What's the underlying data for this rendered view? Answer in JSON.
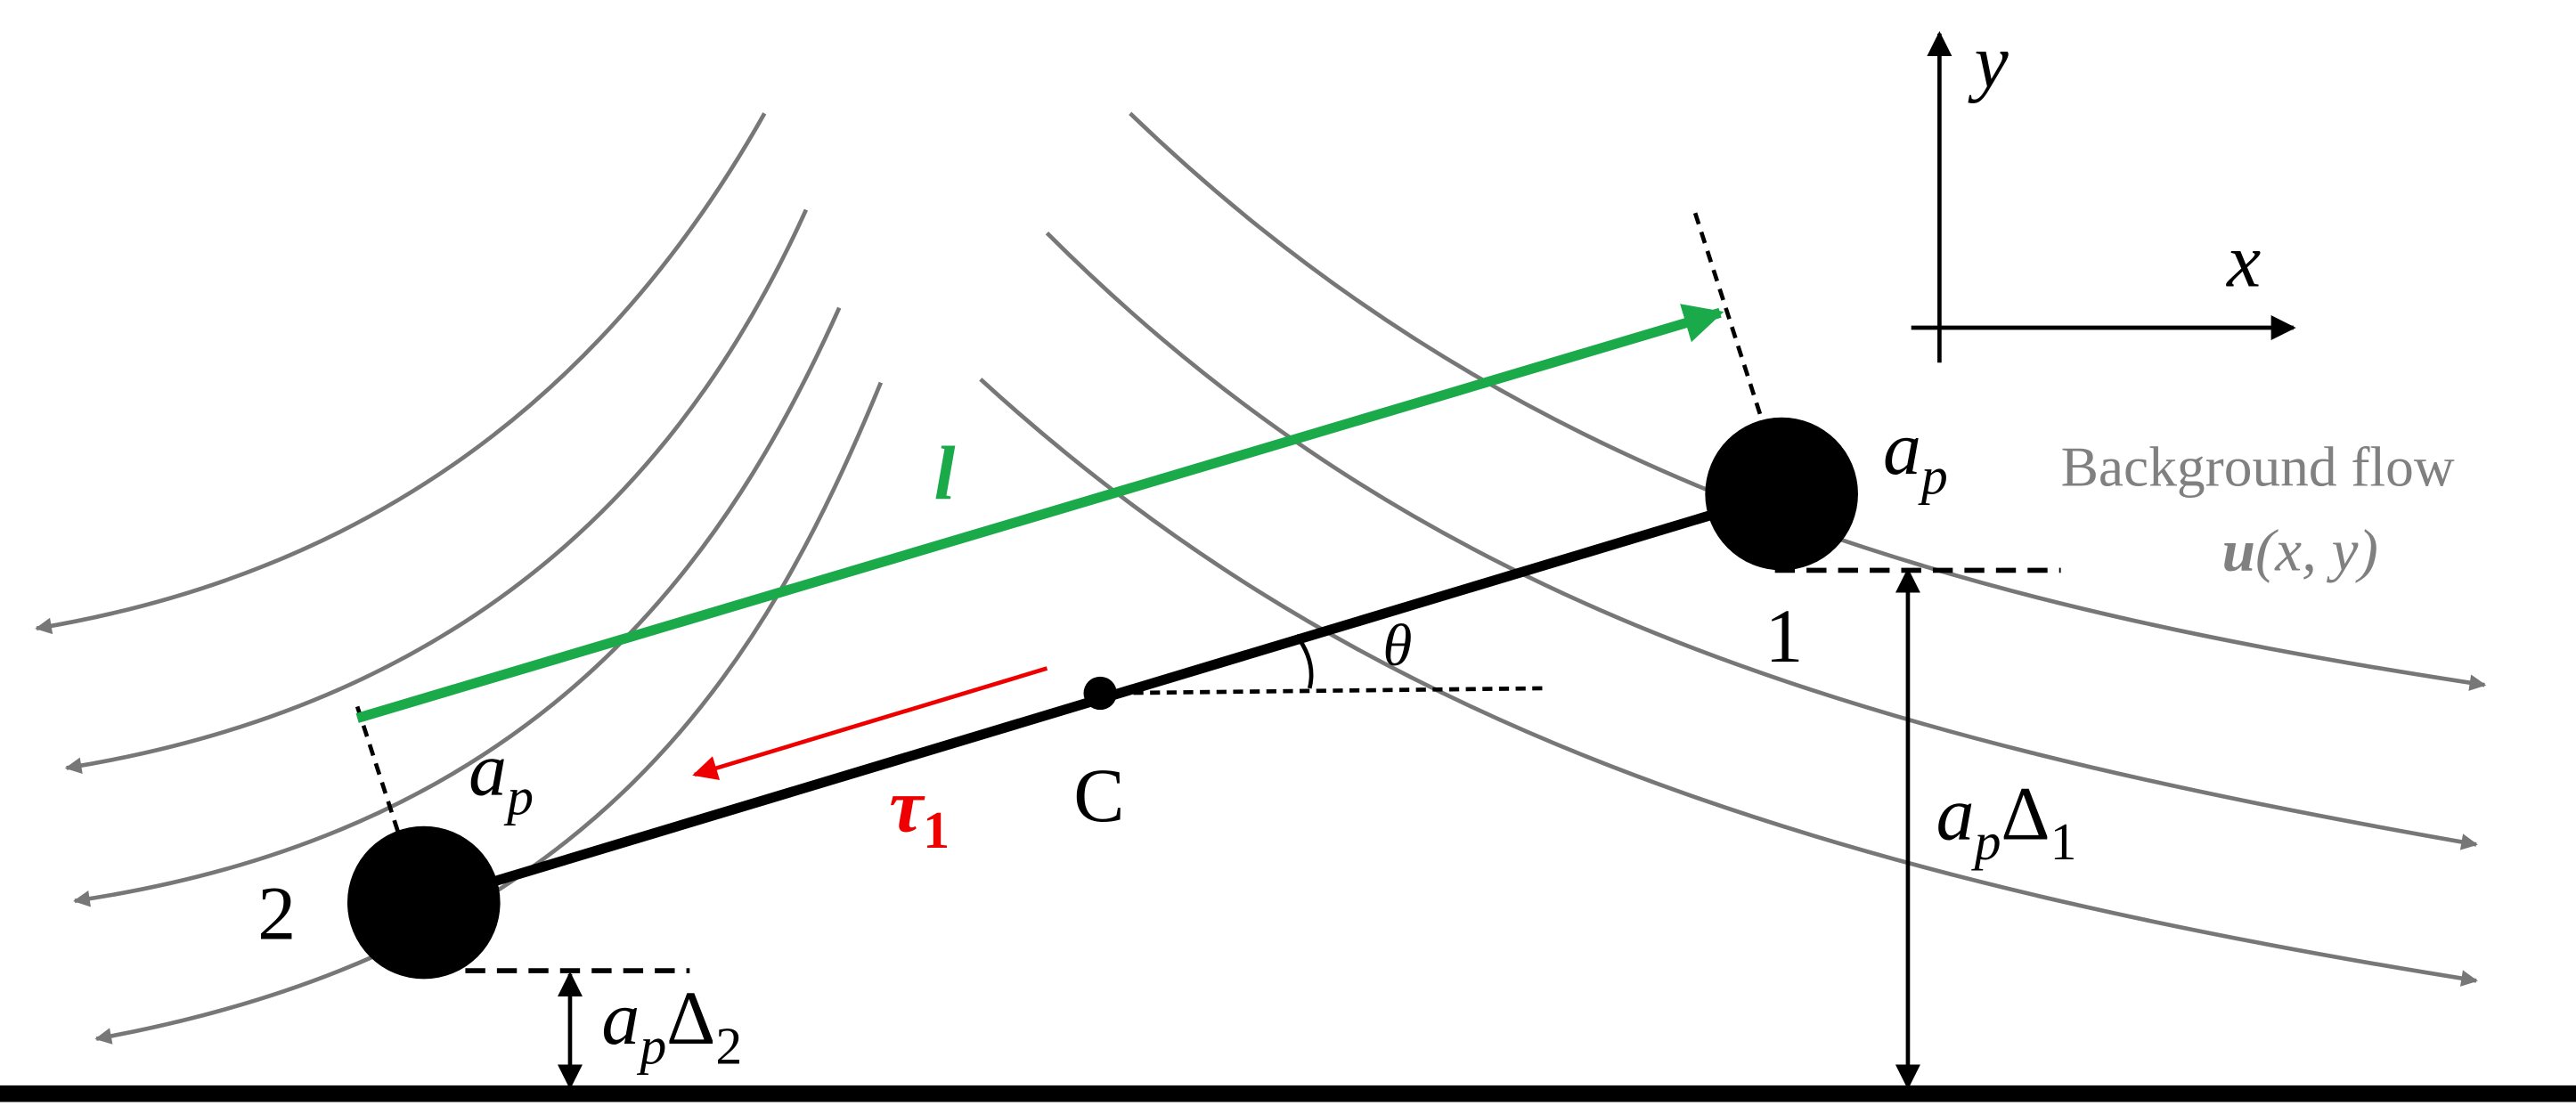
{
  "labels": {
    "axis_y": "y",
    "axis_x": "x",
    "radius_1": {
      "base": "a",
      "sub": "p"
    },
    "radius_2": {
      "base": "a",
      "sub": "p"
    },
    "flow_title": "Background flow",
    "flow_symbol": {
      "bold": "u",
      "rest": "(x, y)"
    },
    "length": "l",
    "angle": "θ",
    "tension": {
      "base": "τ",
      "sub": "1"
    },
    "center": "C",
    "bead_1": "1",
    "bead_2": "2",
    "gap_1": {
      "base": "a",
      "sub": "p",
      "symbol": "Δ",
      "sub2": "1"
    },
    "gap_2": {
      "base": "a",
      "sub": "p",
      "symbol": "Δ",
      "sub2": "2"
    }
  }
}
